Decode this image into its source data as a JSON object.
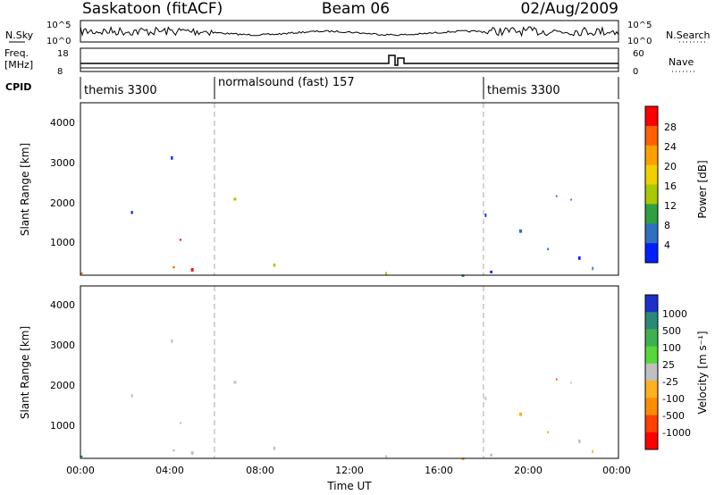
{
  "header": {
    "station": "Saskatoon (fitACF)",
    "beam": "Beam 06",
    "date": "02/Aug/2009"
  },
  "noise_panel": {
    "left_label": "N.Sky",
    "left_ticks": [
      "10^5",
      "10^0"
    ],
    "right_label": "N.Search",
    "right_ticks": [
      "10^5",
      "10^0"
    ]
  },
  "freq_panel": {
    "left_label_1": "Freq.",
    "left_label_2": "[MHz]",
    "left_ticks": [
      "18",
      "8"
    ],
    "right_label": "Nave",
    "right_ticks": [
      "60",
      "0"
    ]
  },
  "cpid_panel": {
    "label": "CPID",
    "modes": [
      {
        "name": "themis 3300",
        "start": "00:00",
        "end": "06:00"
      },
      {
        "name": "normalsound (fast) 157",
        "start": "06:00",
        "end": "18:00"
      },
      {
        "name": "themis 3300",
        "start": "18:00",
        "end": "24:00"
      }
    ]
  },
  "power_panel": {
    "ylabel": "Slant Range [km]",
    "yticks": [
      "4000",
      "3000",
      "2000",
      "1000"
    ],
    "colorbar_label": "Power [dB]",
    "colorbar_ticks": [
      "28",
      "24",
      "20",
      "16",
      "12",
      "8",
      "4"
    ],
    "colors": [
      "#ff0000",
      "#ff6000",
      "#ffa000",
      "#f0d000",
      "#a8c800",
      "#2ea040",
      "#3070c0",
      "#0020ff"
    ]
  },
  "velocity_panel": {
    "ylabel": "Slant Range [km]",
    "yticks": [
      "4000",
      "3000",
      "2000",
      "1000"
    ],
    "colorbar_label": "Velocity  [m s⁻¹]",
    "colorbar_ticks": [
      "1000",
      "500",
      "100",
      "25",
      "-25",
      "-100",
      "-500",
      "-1000"
    ],
    "colors": [
      "#1c30c8",
      "#2a8a78",
      "#3fb050",
      "#58d838",
      "#c0c0c0",
      "#ffb020",
      "#ff8c00",
      "#ff4000",
      "#ff0000"
    ]
  },
  "xaxis": {
    "label": "Time UT",
    "ticks": [
      "00:00",
      "04:00",
      "08:00",
      "12:00",
      "16:00",
      "20:00",
      "00:00"
    ]
  },
  "chart_data": {
    "type": "heatmap",
    "title": "Saskatoon (fitACF)",
    "x_range": [
      "00:00",
      "24:00"
    ],
    "y_range_km": [
      180,
      4500
    ],
    "panels": [
      {
        "name": "Power",
        "units": "dB",
        "range": [
          0,
          30
        ]
      },
      {
        "name": "Velocity",
        "units": "m s^-1",
        "range": [
          -1000,
          1000
        ]
      }
    ]
  }
}
